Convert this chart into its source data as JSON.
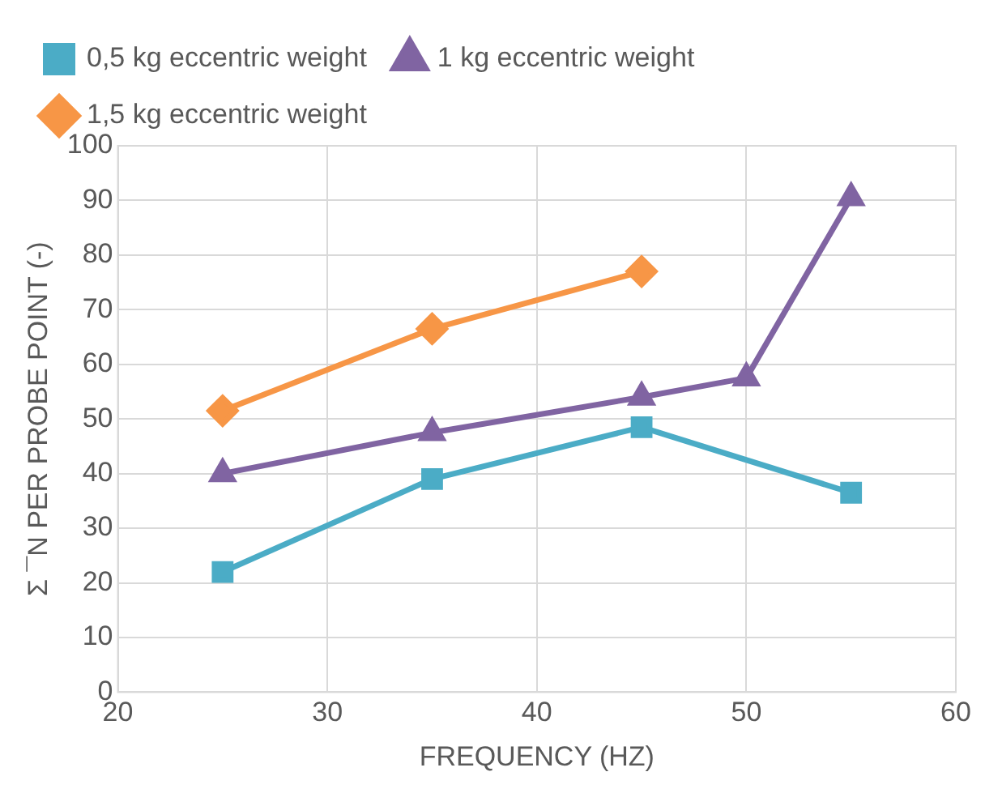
{
  "chart_data": {
    "type": "line",
    "xlabel": "FREQUENCY (HZ)",
    "ylabel": "Σ ¯N PER PROBE POINT (-)",
    "xlim": [
      20,
      60
    ],
    "xticks": [
      20,
      30,
      40,
      50,
      60
    ],
    "ylim": [
      0,
      100
    ],
    "yticks": [
      0,
      10,
      20,
      30,
      40,
      50,
      60,
      70,
      80,
      90,
      100
    ],
    "grid": true,
    "legend": "top",
    "line_style": "solid",
    "series": [
      {
        "name": "0,5 kg eccentric weight",
        "color": "#4bacc6",
        "marker": "square",
        "x": [
          25,
          35,
          45,
          55
        ],
        "values": [
          22,
          39,
          48.5,
          36.5
        ]
      },
      {
        "name": "1 kg eccentric weight",
        "color": "#8064a2",
        "marker": "triangle",
        "x": [
          25,
          35,
          45,
          50,
          55
        ],
        "values": [
          40,
          47.5,
          54,
          57.5,
          90.5
        ]
      },
      {
        "name": "1,5 kg eccentric weight",
        "color": "#f79646",
        "marker": "diamond",
        "x": [
          25,
          35,
          45
        ],
        "values": [
          51.5,
          66.5,
          77
        ]
      }
    ]
  }
}
